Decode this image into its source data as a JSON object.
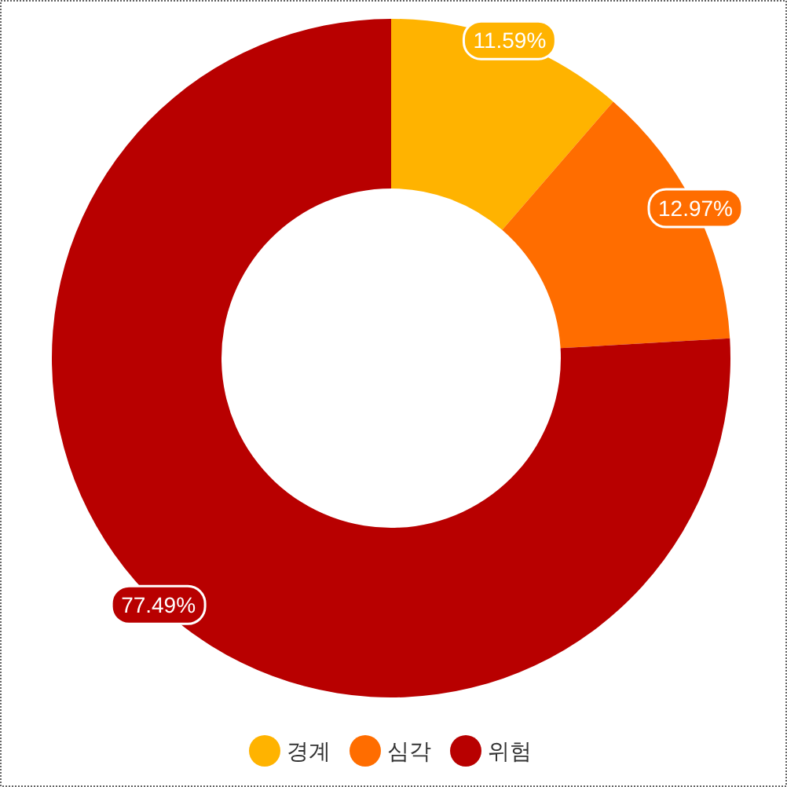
{
  "chart_data": {
    "type": "donut",
    "categories": [
      "경계",
      "심각",
      "위험"
    ],
    "values": [
      11.59,
      12.97,
      77.49
    ],
    "colors": [
      "#ffb300",
      "#ff6d00",
      "#b80000"
    ],
    "value_labels": [
      "11.59%",
      "12.97%",
      "77.49%"
    ],
    "legend": "bottom"
  }
}
